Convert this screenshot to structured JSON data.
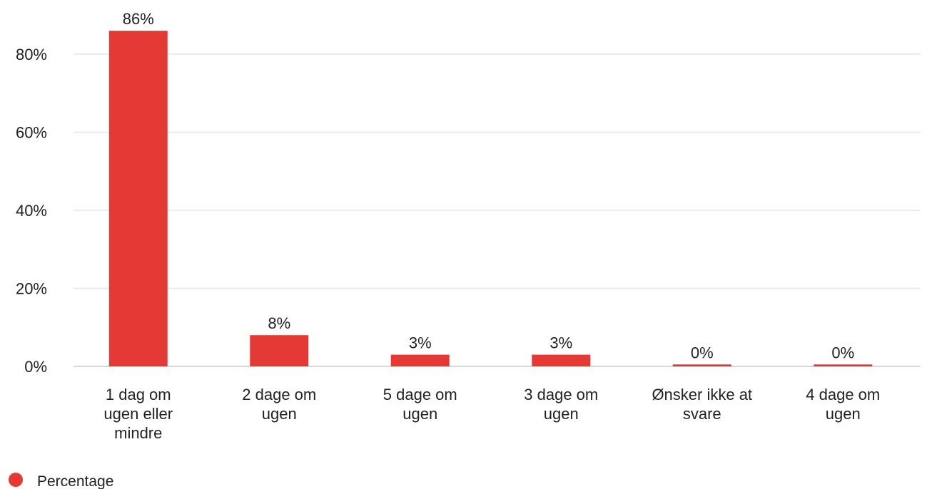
{
  "chart_data": {
    "type": "bar",
    "categories": [
      [
        "1 dag om",
        "ugen eller",
        "mindre"
      ],
      [
        "2 dage om",
        "ugen"
      ],
      [
        "5 dage om",
        "ugen"
      ],
      [
        "3 dage om",
        "ugen"
      ],
      [
        "Ønsker ikke at",
        "svare"
      ],
      [
        "4 dage om",
        "ugen"
      ]
    ],
    "series": [
      {
        "name": "Percentage",
        "color": "#e53935",
        "values": [
          86,
          8,
          3,
          3,
          0.5,
          0.5
        ],
        "labels": [
          "86%",
          "8%",
          "3%",
          "3%",
          "0%",
          "0%"
        ]
      }
    ],
    "y_ticks": [
      {
        "value": 0,
        "label": "0%"
      },
      {
        "value": 20,
        "label": "20%"
      },
      {
        "value": 40,
        "label": "40%"
      },
      {
        "value": 60,
        "label": "60%"
      },
      {
        "value": 80,
        "label": "80%"
      }
    ],
    "ylim": [
      0,
      90
    ],
    "grid": true,
    "legend_position": "bottom-left",
    "title": "",
    "xlabel": "",
    "ylabel": ""
  }
}
